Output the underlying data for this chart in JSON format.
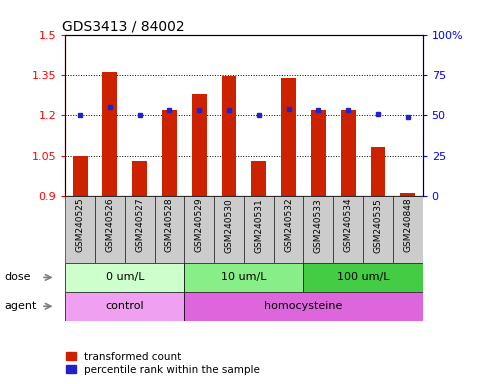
{
  "title": "GDS3413 / 84002",
  "samples": [
    "GSM240525",
    "GSM240526",
    "GSM240527",
    "GSM240528",
    "GSM240529",
    "GSM240530",
    "GSM240531",
    "GSM240532",
    "GSM240533",
    "GSM240534",
    "GSM240535",
    "GSM240848"
  ],
  "transformed_count": [
    1.05,
    1.36,
    1.03,
    1.22,
    1.28,
    1.345,
    1.03,
    1.34,
    1.22,
    1.22,
    1.08,
    0.91
  ],
  "percentile_rank": [
    50,
    55,
    50,
    53,
    53,
    53,
    50,
    54,
    53,
    53,
    51,
    49
  ],
  "bar_color": "#cc2200",
  "dot_color": "#2222cc",
  "ylim_left": [
    0.9,
    1.5
  ],
  "ylim_right": [
    0,
    100
  ],
  "yticks_left": [
    0.9,
    1.05,
    1.2,
    1.35,
    1.5
  ],
  "yticks_right": [
    0,
    25,
    50,
    75,
    100
  ],
  "ytick_labels_left": [
    "0.9",
    "1.05",
    "1.2",
    "1.35",
    "1.5"
  ],
  "ytick_labels_right": [
    "0",
    "25",
    "50",
    "75",
    "100%"
  ],
  "hlines": [
    1.05,
    1.2,
    1.35
  ],
  "dose_groups": [
    {
      "label": "0 um/L",
      "start": 0,
      "end": 4,
      "color": "#ccffcc"
    },
    {
      "label": "10 um/L",
      "start": 4,
      "end": 8,
      "color": "#88ee88"
    },
    {
      "label": "100 um/L",
      "start": 8,
      "end": 12,
      "color": "#44cc44"
    }
  ],
  "agent_groups": [
    {
      "label": "control",
      "start": 0,
      "end": 4,
      "color": "#f0a0f0"
    },
    {
      "label": "homocysteine",
      "start": 4,
      "end": 12,
      "color": "#dd66dd"
    }
  ],
  "dose_label": "dose",
  "agent_label": "agent",
  "legend_bar_label": "transformed count",
  "legend_dot_label": "percentile rank within the sample",
  "background_color": "#ffffff",
  "sample_bg_color": "#cccccc",
  "bar_bottom": 0.9
}
